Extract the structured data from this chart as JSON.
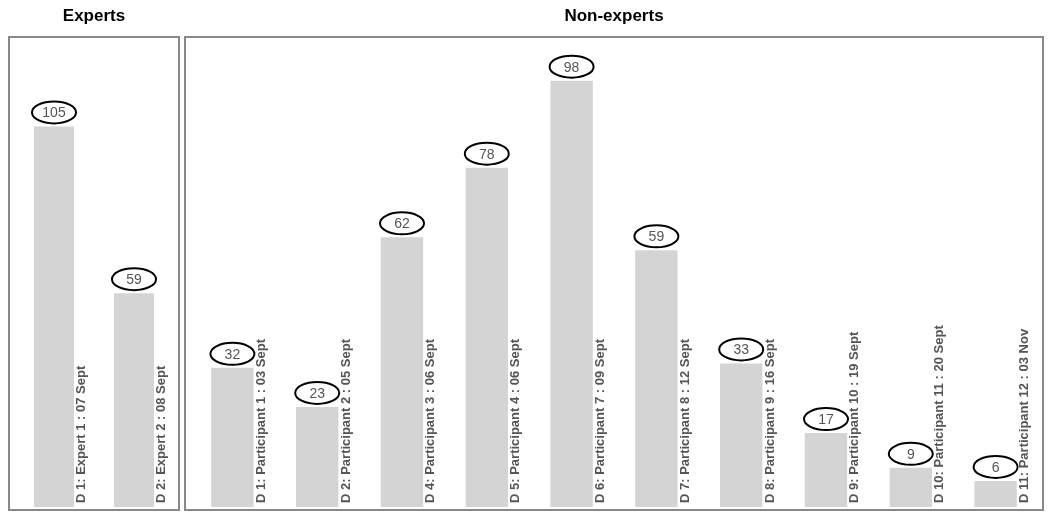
{
  "chart_data": [
    {
      "type": "bar",
      "title": "Experts",
      "categories": [
        "D 1: Expert 1 : 07 Sept",
        "D 2: Expert 2 : 08 Sept"
      ],
      "values": [
        105,
        59
      ],
      "color": "#d4d4d4",
      "data_labels": true
    },
    {
      "type": "bar",
      "title": "Non-experts",
      "categories": [
        "D 1: Participant 1 : 03 Sept",
        "D 2: Participant 2 : 05 Sept",
        "D 4: Participant 3 : 06 Sept",
        "D 5: Participant 4 : 06 Sept",
        "D 6: Participant 7 : 09 Sept",
        "D 7: Participant 8 : 12 Sept",
        "D 8: Participant 9 : 16 Sept",
        "D 9: Participant 10 : 19 Sept",
        "D 10: Participant 11 : 20 Sept",
        "D 11: Participant 12 : 03 Nov"
      ],
      "values": [
        32,
        23,
        62,
        78,
        98,
        59,
        33,
        17,
        9,
        6
      ],
      "color": "#d4d4d4",
      "data_labels": true
    }
  ]
}
